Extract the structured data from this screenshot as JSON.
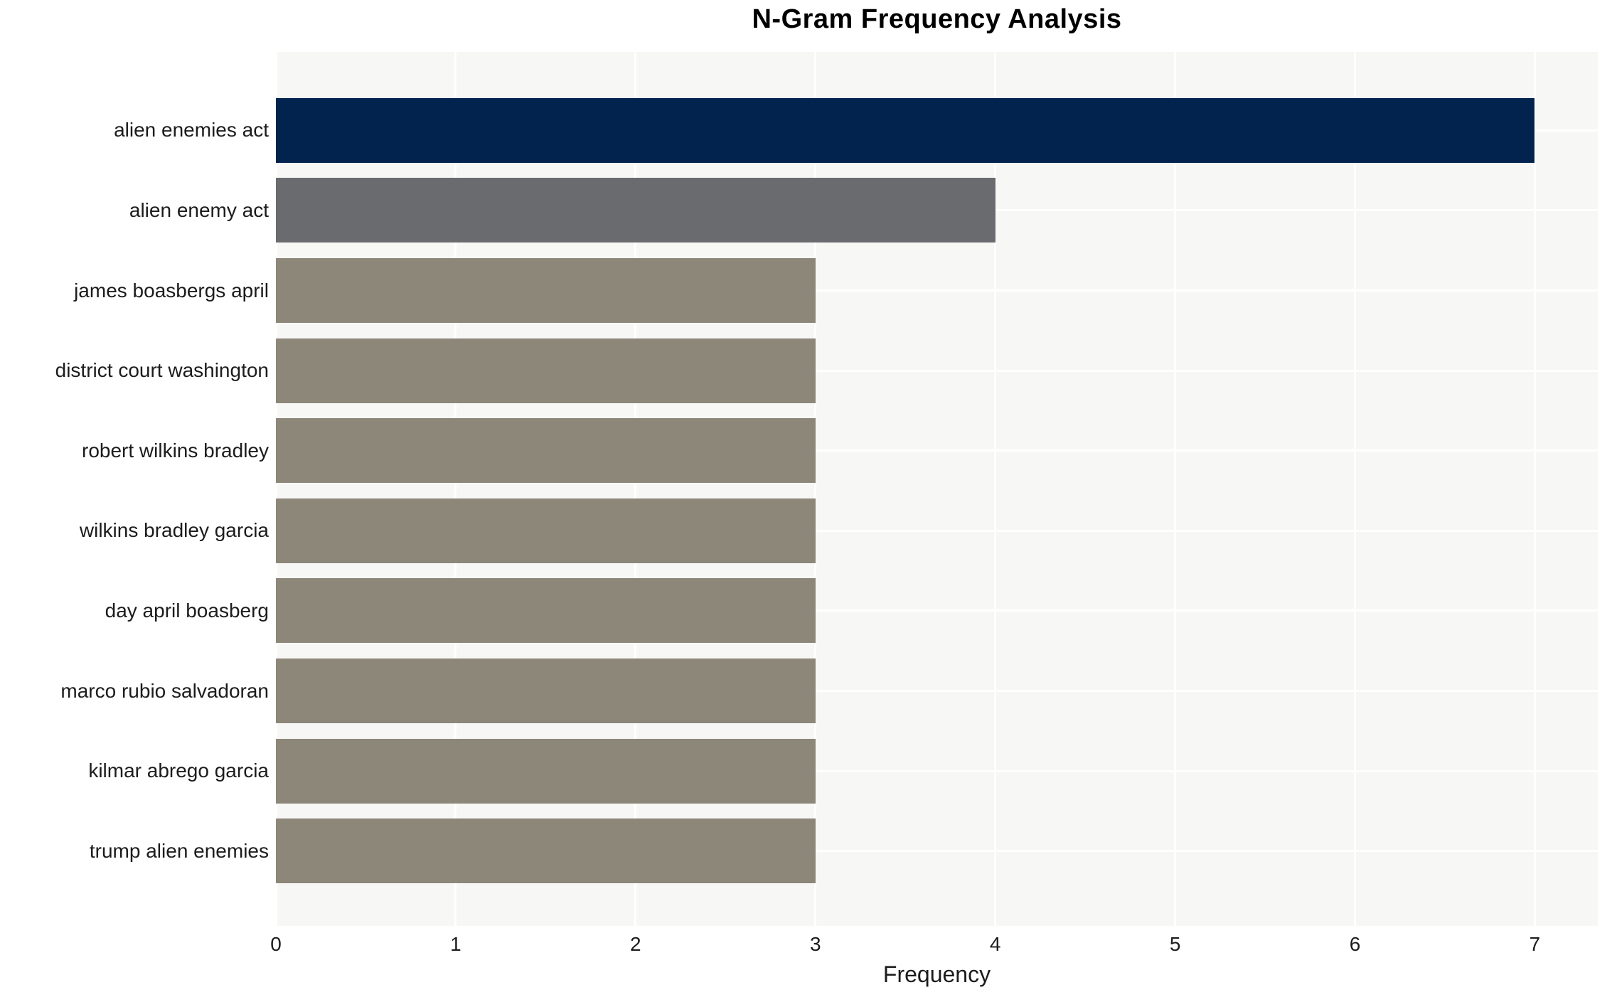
{
  "page": {
    "title": "N-Gram Frequency Analysis"
  },
  "chart_data": {
    "type": "bar",
    "orientation": "horizontal",
    "title": "N-Gram Frequency Analysis",
    "xlabel": "Frequency",
    "ylabel": "",
    "xlim": [
      0,
      7.35
    ],
    "xticks": [
      0,
      1,
      2,
      3,
      4,
      5,
      6,
      7
    ],
    "grid": true,
    "legend": false,
    "categories": [
      "alien enemies act",
      "alien enemy act",
      "james boasbergs april",
      "district court washington",
      "robert wilkins bradley",
      "wilkins bradley garcia",
      "day april boasberg",
      "marco rubio salvadoran",
      "kilmar abrego garcia",
      "trump alien enemies"
    ],
    "values": [
      7,
      4,
      3,
      3,
      3,
      3,
      3,
      3,
      3,
      3
    ],
    "bar_colors": [
      "#02234e",
      "#6a6b6f",
      "#8d8779",
      "#8d8779",
      "#8d8779",
      "#8d8779",
      "#8d8779",
      "#8d8779",
      "#8d8779",
      "#8d8779"
    ],
    "colors": {
      "plot_background": "#f7f7f6",
      "grid": "#ffffff",
      "text": "#1c1c1c"
    }
  }
}
